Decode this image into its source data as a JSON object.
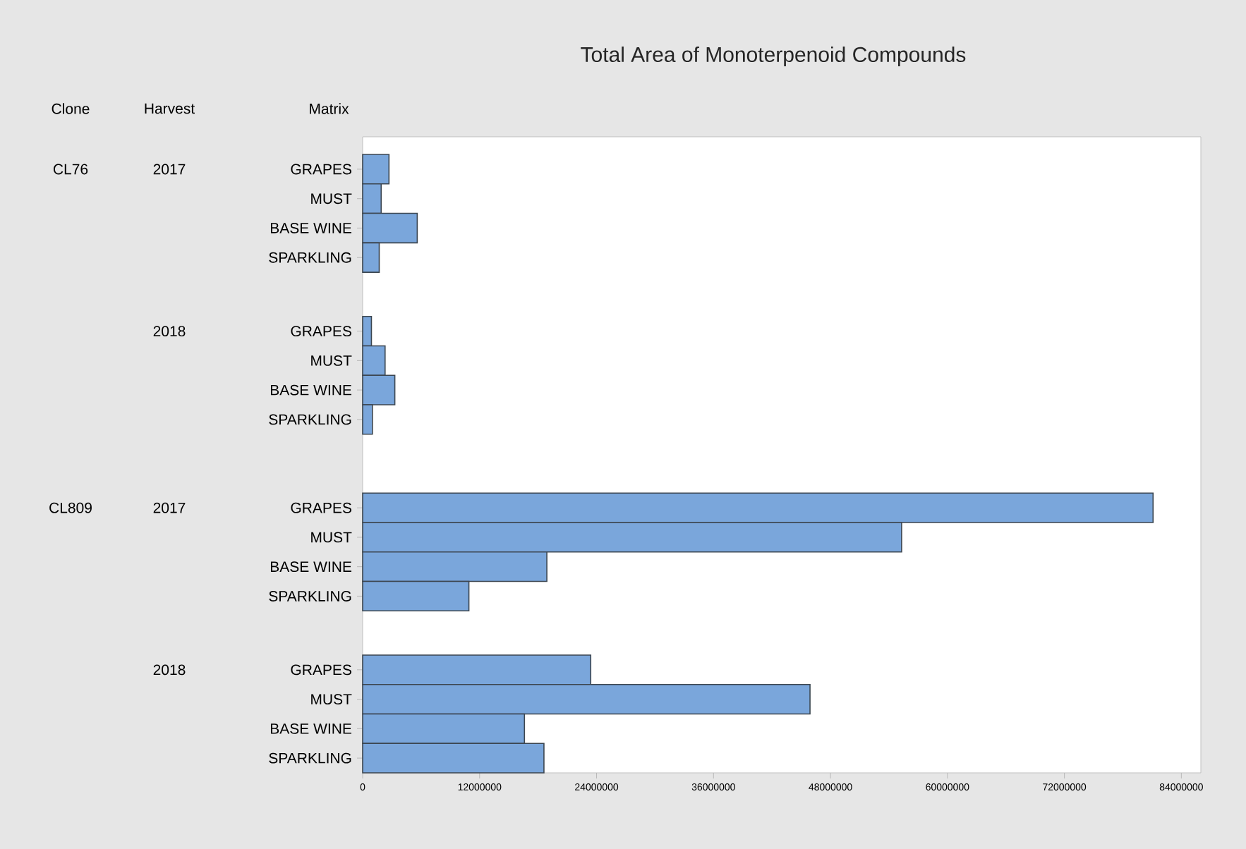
{
  "chart_data": {
    "type": "bar",
    "orientation": "horizontal",
    "title": "Total Area of Monoterpenoid Compounds",
    "categories": [
      "GRAPES",
      "MUST",
      "BASE WINE",
      "SPARKLING",
      "GRAPES",
      "MUST",
      "BASE WINE",
      "SPARKLING",
      "GRAPES",
      "MUST",
      "BASE WINE",
      "SPARKLING",
      "GRAPES",
      "MUST",
      "BASE WINE",
      "SPARKLING"
    ],
    "values": [
      2700000,
      1900000,
      5600000,
      1700000,
      900000,
      2300000,
      3300000,
      1000000,
      81100000,
      55300000,
      18900000,
      10900000,
      23400000,
      45900000,
      16600000,
      18600000
    ],
    "color": "#7aa6db",
    "xlim": [
      0,
      86000000
    ],
    "xticks": [
      0,
      12000000,
      24000000,
      36000000,
      48000000,
      60000000,
      72000000,
      84000000
    ],
    "annotations": [
      "Clone",
      "Harvest",
      "Matrix",
      "CL76",
      "2017",
      "2018",
      "CL809",
      "2017",
      "2018"
    ]
  }
}
